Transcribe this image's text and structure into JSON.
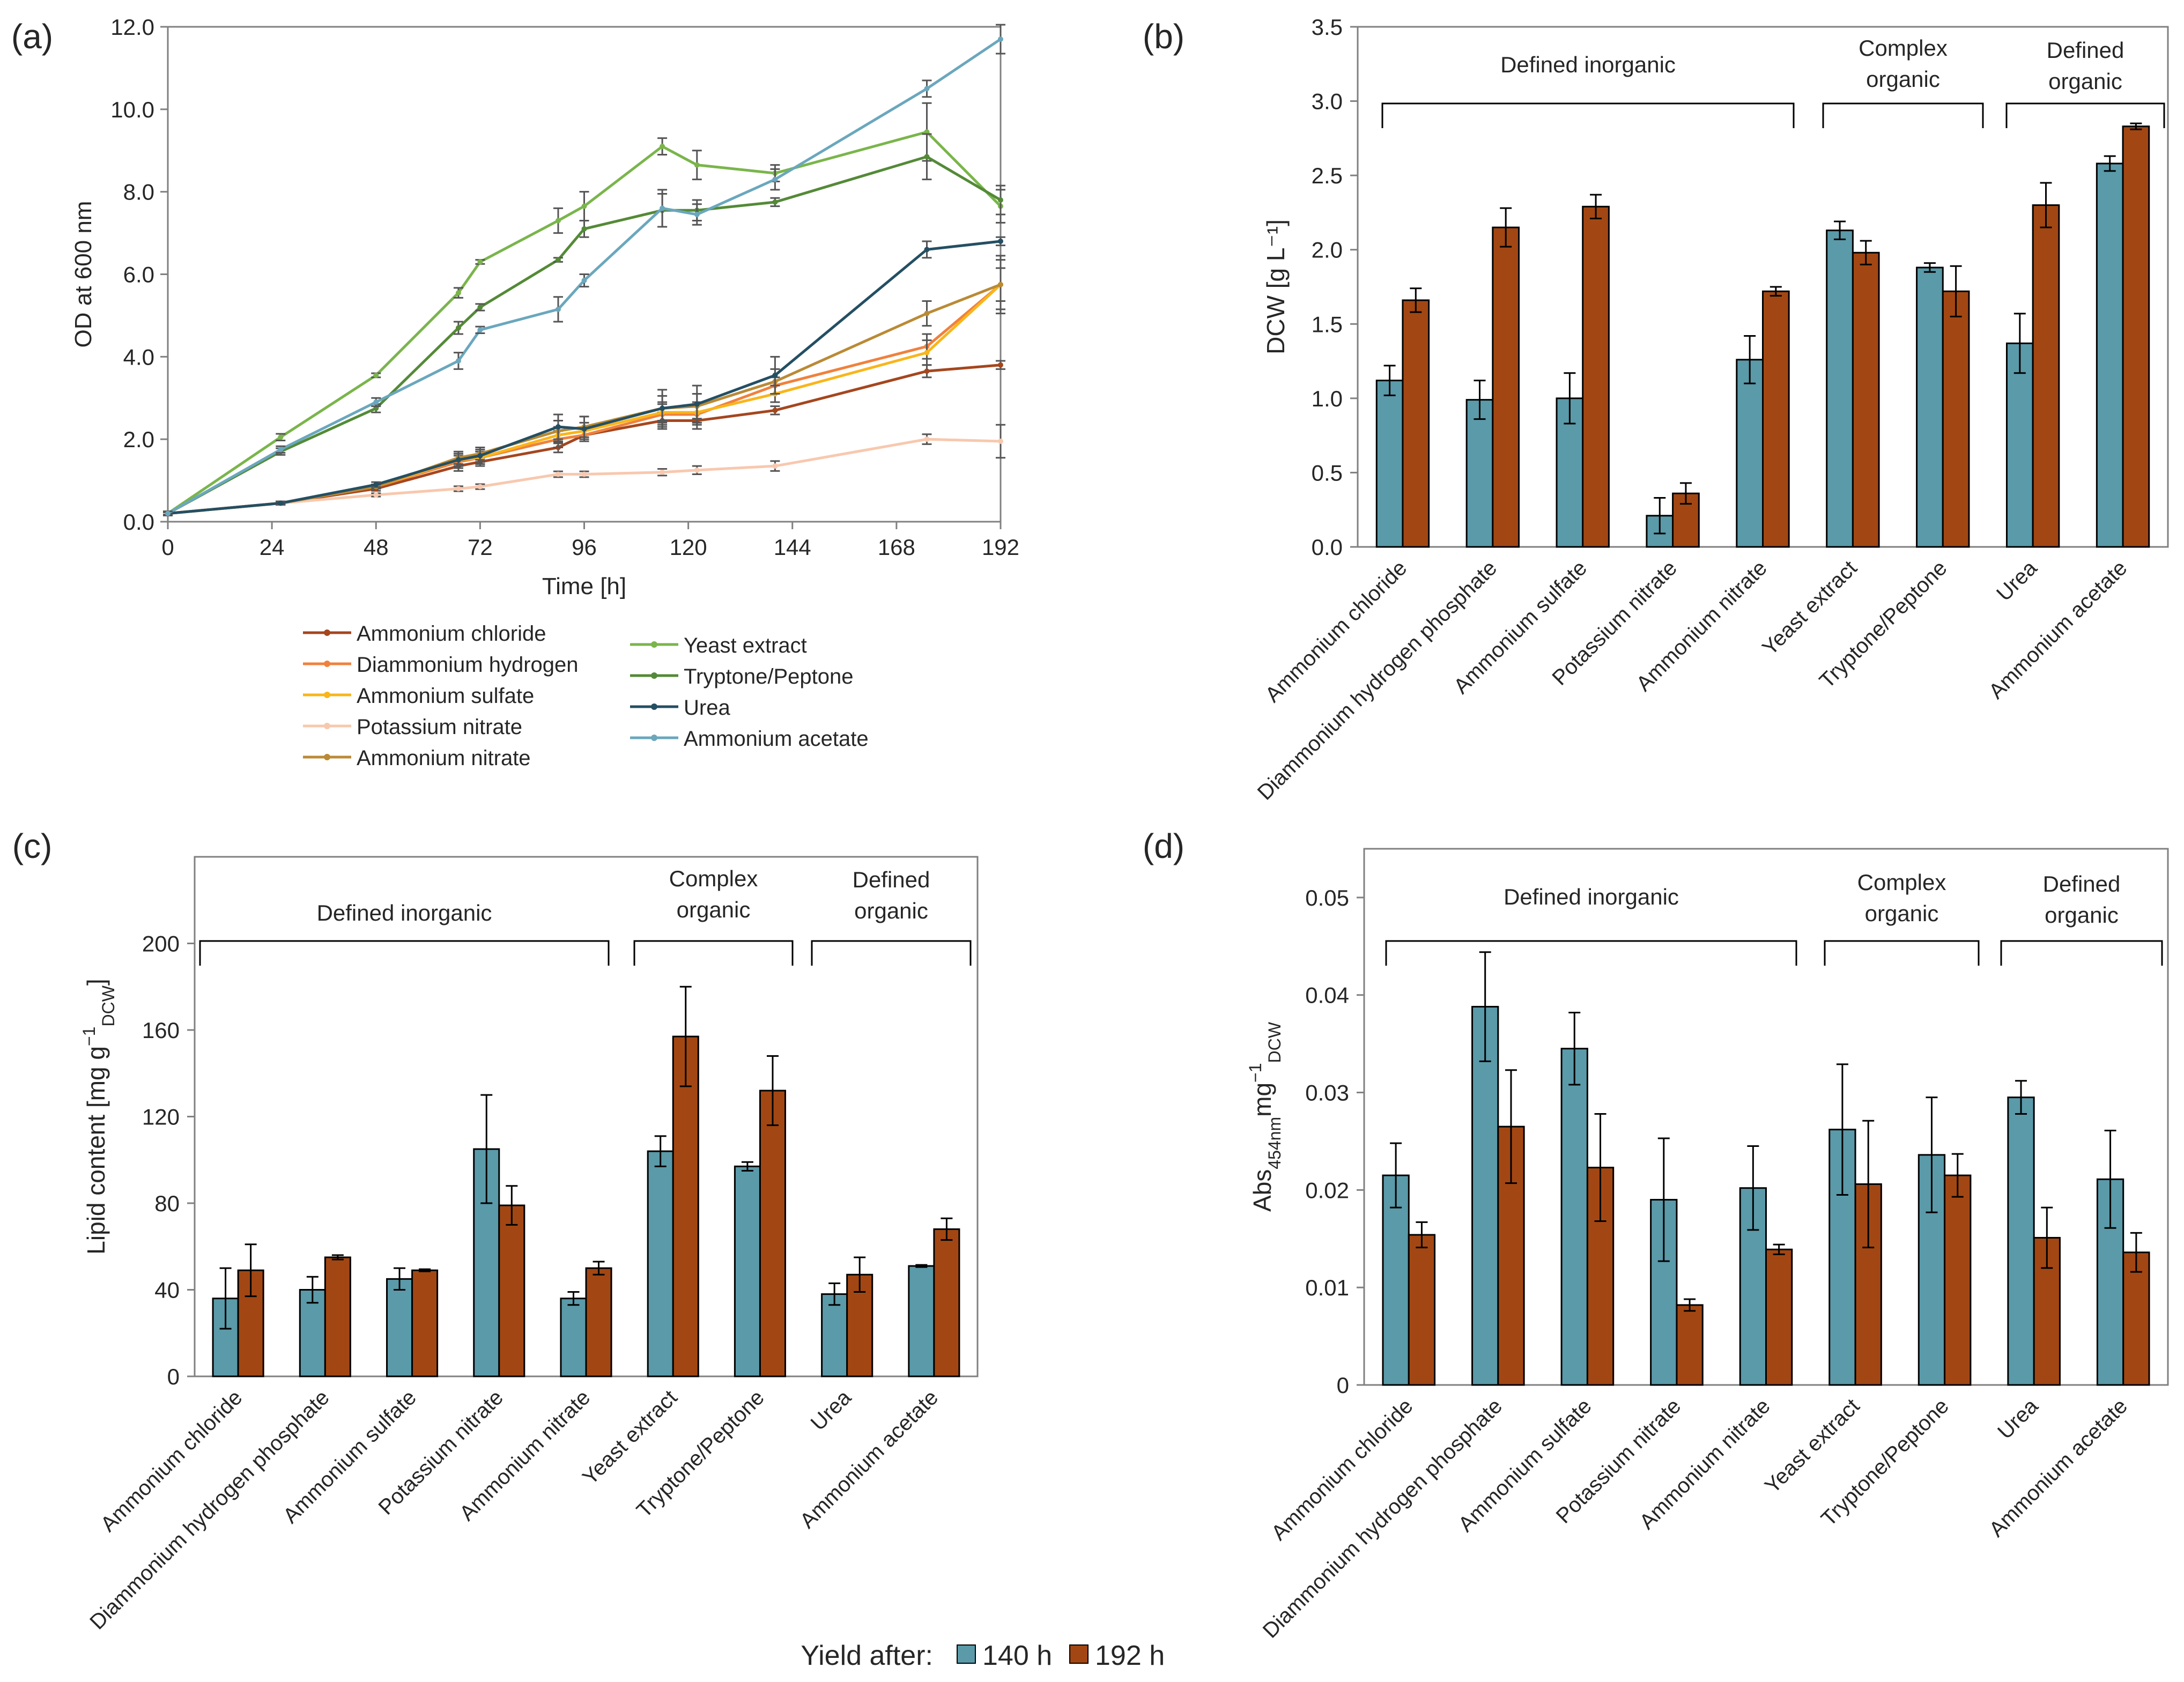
{
  "colors": {
    "bar140": "#5a9aa9",
    "bar192": "#a24713",
    "axis": "#808080",
    "ammonium_chloride": "#a5461e",
    "diammonium_hydrogen": "#f0813d",
    "ammonium_sulfate": "#f9b51a",
    "potassium_nitrate": "#f8c8ae",
    "ammonium_nitrate": "#ba8a34",
    "yeast_extract": "#7ab54b",
    "tryptone_peptone": "#548a37",
    "urea": "#244f63",
    "ammonium_acetate": "#6aa7bd"
  },
  "categories": [
    "Ammonium chloride",
    "Diammonium hydrogen phosphate",
    "Ammonium sulfate",
    "Potassium nitrate",
    "Ammonium nitrate",
    "Yeast extract",
    "Tryptone/Peptone",
    "Urea",
    "Ammonium acetate"
  ],
  "groups": {
    "defined_inorganic": "Defined inorganic",
    "complex_organic_1": "Complex",
    "complex_organic_2": "organic",
    "defined_organic_1": "Defined",
    "defined_organic_2": "organic"
  },
  "bottom_legend": {
    "title": "Yield after:",
    "s140": "140 h",
    "s192": "192 h"
  },
  "chart_data": [
    {
      "panel": "(a)",
      "type": "line",
      "xlabel": "Time [h]",
      "ylabel": "OD at 600 nm",
      "xlim": [
        0,
        192
      ],
      "ylim": [
        0,
        12
      ],
      "xticks": [
        "0",
        "24",
        "48",
        "72",
        "96",
        "120",
        "144",
        "168",
        "192"
      ],
      "yticks": [
        "0.0",
        "2.0",
        "4.0",
        "6.0",
        "8.0",
        "10.0",
        "12.0"
      ],
      "x": [
        0,
        26,
        48,
        67,
        72,
        90,
        96,
        114,
        122,
        140,
        175,
        192
      ],
      "series": [
        {
          "name": "Ammonium chloride",
          "color_key": "ammonium_chloride",
          "values": [
            0.2,
            0.45,
            0.8,
            1.35,
            1.45,
            1.8,
            2.1,
            2.45,
            2.45,
            2.7,
            3.65,
            3.8
          ],
          "err": [
            0.03,
            0.04,
            0.05,
            0.12,
            0.1,
            0.12,
            0.15,
            0.2,
            0.2,
            0.1,
            0.15,
            0.1
          ]
        },
        {
          "name": "Diammonium hydrogen",
          "color_key": "diammonium_hydrogen",
          "values": [
            0.2,
            0.45,
            0.85,
            1.45,
            1.55,
            2.0,
            2.1,
            2.6,
            2.6,
            3.3,
            4.25,
            5.75
          ],
          "err": [
            0.03,
            0.04,
            0.05,
            0.15,
            0.15,
            0.2,
            0.15,
            0.25,
            0.25,
            0.2,
            0.3,
            0.7
          ]
        },
        {
          "name": "Ammonium sulfate",
          "color_key": "ammonium_sulfate",
          "values": [
            0.2,
            0.45,
            0.85,
            1.5,
            1.55,
            2.1,
            2.2,
            2.65,
            2.65,
            3.1,
            4.1,
            5.75
          ],
          "err": [
            0.03,
            0.04,
            0.05,
            0.15,
            0.15,
            0.2,
            0.2,
            0.25,
            0.25,
            0.2,
            0.3,
            0.6
          ]
        },
        {
          "name": "Potassium nitrate",
          "color_key": "potassium_nitrate",
          "values": [
            0.2,
            0.45,
            0.65,
            0.8,
            0.85,
            1.15,
            1.15,
            1.2,
            1.25,
            1.35,
            2.0,
            1.95
          ],
          "err": [
            0.03,
            0.03,
            0.04,
            0.06,
            0.06,
            0.07,
            0.07,
            0.08,
            0.1,
            0.12,
            0.12,
            0.4
          ]
        },
        {
          "name": "Ammonium nitrate",
          "color_key": "ammonium_nitrate",
          "values": [
            0.2,
            0.45,
            0.85,
            1.55,
            1.65,
            2.2,
            2.3,
            2.75,
            2.8,
            3.4,
            5.05,
            5.75
          ],
          "err": [
            0.03,
            0.04,
            0.05,
            0.15,
            0.15,
            0.25,
            0.25,
            0.3,
            0.3,
            0.3,
            0.3,
            0.4
          ]
        },
        {
          "name": "Yeast extract",
          "color_key": "yeast_extract",
          "values": [
            0.2,
            2.05,
            3.55,
            5.55,
            6.3,
            7.3,
            7.65,
            9.1,
            8.65,
            8.45,
            9.45,
            7.65
          ],
          "err": [
            0.05,
            0.08,
            0.05,
            0.12,
            0.05,
            0.3,
            0.35,
            0.2,
            0.35,
            0.2,
            0.7,
            0.4
          ]
        },
        {
          "name": "Tryptone/Peptone",
          "color_key": "tryptone_peptone",
          "values": [
            0.2,
            1.7,
            2.75,
            4.7,
            5.2,
            6.35,
            7.1,
            7.55,
            7.55,
            7.75,
            8.85,
            7.8
          ],
          "err": [
            0.05,
            0.08,
            0.1,
            0.15,
            0.08,
            0.05,
            0.2,
            0.4,
            0.25,
            0.1,
            0.55,
            0.35
          ]
        },
        {
          "name": "Urea",
          "color_key": "urea",
          "values": [
            0.2,
            0.45,
            0.9,
            1.5,
            1.6,
            2.3,
            2.25,
            2.75,
            2.85,
            3.55,
            6.6,
            6.8
          ],
          "err": [
            0.03,
            0.04,
            0.06,
            0.15,
            0.15,
            0.3,
            0.3,
            0.45,
            0.45,
            0.45,
            0.2,
            0.1
          ]
        },
        {
          "name": "Ammonium acetate",
          "color_key": "ammonium_acetate",
          "values": [
            0.2,
            1.75,
            2.9,
            3.9,
            4.65,
            5.15,
            5.85,
            7.6,
            7.45,
            8.3,
            10.5,
            11.7
          ],
          "err": [
            0.05,
            0.08,
            0.1,
            0.2,
            0.08,
            0.3,
            0.15,
            0.45,
            0.25,
            0.25,
            0.2,
            0.35
          ]
        }
      ]
    },
    {
      "panel": "(b)",
      "type": "bar",
      "ylabel": "DCW [g L⁻¹]",
      "ylim": [
        0,
        3.5
      ],
      "yticks": [
        "0.0",
        "0.5",
        "1.0",
        "1.5",
        "2.0",
        "2.5",
        "3.0",
        "3.5"
      ],
      "series": [
        {
          "name": "140 h",
          "values": [
            1.12,
            0.99,
            1.0,
            0.21,
            1.26,
            2.13,
            1.88,
            1.37,
            2.58
          ],
          "err": [
            0.1,
            0.13,
            0.17,
            0.12,
            0.16,
            0.06,
            0.03,
            0.2,
            0.05
          ]
        },
        {
          "name": "192 h",
          "values": [
            1.66,
            2.15,
            2.29,
            0.36,
            1.72,
            1.98,
            1.72,
            2.3,
            2.83
          ],
          "err": [
            0.08,
            0.13,
            0.08,
            0.07,
            0.03,
            0.08,
            0.17,
            0.15,
            0.02
          ]
        }
      ]
    },
    {
      "panel": "(c)",
      "type": "bar",
      "ylabel_main": "Lipid content [mg g",
      "ylabel_sup": "−1",
      "ylabel_sub": "DCW",
      "ylabel_end": "]",
      "ylim": [
        0,
        240
      ],
      "yticks": [
        "0",
        "40",
        "80",
        "120",
        "160",
        "200"
      ],
      "series": [
        {
          "name": "140 h",
          "values": [
            36,
            40,
            45,
            105,
            36,
            104,
            97,
            38,
            51
          ],
          "err": [
            14,
            6,
            5,
            25,
            3,
            7,
            2,
            5,
            0.5
          ]
        },
        {
          "name": "192 h",
          "values": [
            49,
            55,
            49,
            79,
            50,
            157,
            132,
            47,
            68
          ],
          "err": [
            12,
            1,
            0.5,
            9,
            3,
            23,
            16,
            8,
            5
          ]
        }
      ]
    },
    {
      "panel": "(d)",
      "type": "bar",
      "ylabel_main": "Abs",
      "ylabel_sub1": "454nm",
      "ylabel_mid": "mg",
      "ylabel_sup": "−1",
      "ylabel_sub2": "DCW",
      "ylim": [
        0,
        0.055
      ],
      "yticks": [
        "0",
        "0.01",
        "0.02",
        "0.03",
        "0.04",
        "0.05"
      ],
      "series": [
        {
          "name": "140 h",
          "values": [
            0.0215,
            0.0388,
            0.0345,
            0.019,
            0.0202,
            0.0262,
            0.0236,
            0.0295,
            0.0211
          ],
          "err": [
            0.0033,
            0.0056,
            0.0037,
            0.0063,
            0.0043,
            0.0067,
            0.0059,
            0.0017,
            0.005
          ]
        },
        {
          "name": "192 h",
          "values": [
            0.0154,
            0.0265,
            0.0223,
            0.0082,
            0.0139,
            0.0206,
            0.0215,
            0.0151,
            0.0136
          ],
          "err": [
            0.0013,
            0.0058,
            0.0055,
            0.0006,
            0.0005,
            0.0065,
            0.0022,
            0.0031,
            0.002
          ]
        }
      ]
    }
  ]
}
